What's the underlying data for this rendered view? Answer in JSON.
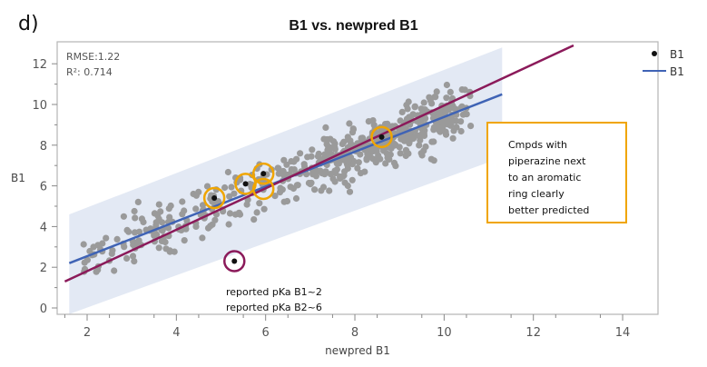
{
  "panel_label": "d)",
  "chart_data": {
    "type": "scatter",
    "title": "B1 vs. newpred B1",
    "xlabel": "newpred B1",
    "ylabel": "B1",
    "xlim": [
      1.4,
      14.3
    ],
    "ylim": [
      -0.3,
      13.0
    ],
    "xticks": [
      2,
      4,
      6,
      8,
      10,
      12,
      14
    ],
    "yticks": [
      0,
      2,
      4,
      6,
      8,
      10,
      12
    ],
    "grid": false,
    "stats": {
      "rmse_label": "RMSE:1.22",
      "r2_label": "R²: 0.714",
      "rmse": 1.22,
      "r2": 0.714
    },
    "legend": {
      "placement": "right",
      "entries": [
        {
          "label": "B1",
          "kind": "marker"
        },
        {
          "label": "B1",
          "kind": "line"
        }
      ]
    },
    "identity_line": {
      "name": "y = x",
      "color": "#8b1a5a",
      "x": [
        1.5,
        12.9
      ],
      "y": [
        1.3,
        12.9
      ]
    },
    "fit_line": {
      "name": "B1",
      "color": "#3f63b5",
      "x": [
        1.6,
        11.3
      ],
      "y": [
        2.2,
        10.5
      ]
    },
    "prediction_band": {
      "color": "#e3e9f4",
      "x": [
        1.6,
        11.3
      ],
      "lower": [
        -0.3,
        7.4
      ],
      "upper": [
        4.6,
        12.8
      ]
    },
    "highlighted_points": [
      {
        "x": 4.85,
        "y": 5.4,
        "ring": "#f0a500"
      },
      {
        "x": 5.55,
        "y": 6.1,
        "ring": "#f0a500"
      },
      {
        "x": 5.95,
        "y": 6.6,
        "ring": "#f0a500"
      },
      {
        "x": 5.95,
        "y": 5.85,
        "ring": "#f0a500",
        "dot": false
      },
      {
        "x": 8.6,
        "y": 8.4,
        "ring": "#f0a500"
      },
      {
        "x": 5.3,
        "y": 2.3,
        "ring": "#8b1a5a"
      }
    ],
    "annotations": [
      {
        "id": "box",
        "lines": [
          "Cmpds with",
          "piperazine next",
          "to an aromatic",
          "ring clearly",
          "better predicted"
        ],
        "border": "#f0a500"
      },
      {
        "id": "outlier",
        "lines": [
          "reported pKa B1~2",
          "reported pKa B2~6"
        ]
      }
    ],
    "point_color": "#9a9a9a",
    "series_points_seed": 20240601,
    "series_points_count": 560
  }
}
